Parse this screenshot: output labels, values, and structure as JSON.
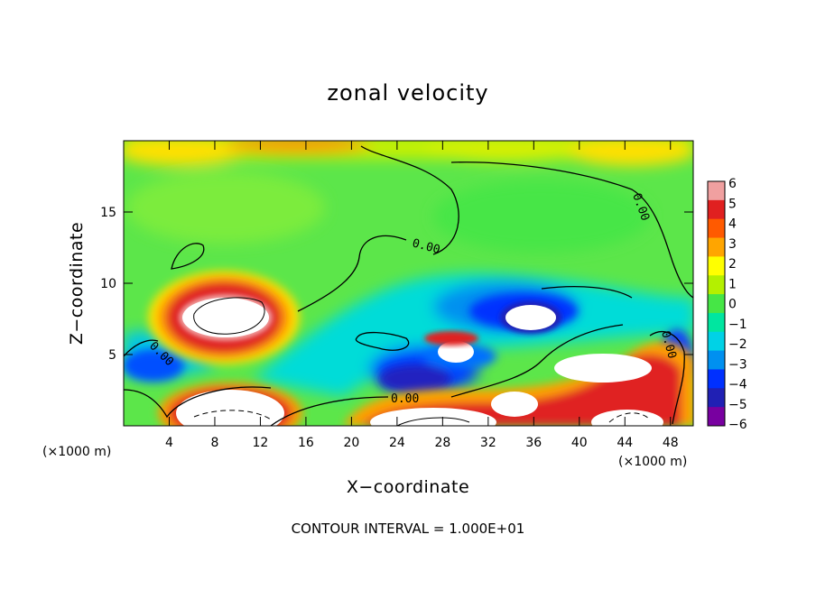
{
  "chart_data": {
    "type": "heatmap",
    "title": "zonal velocity",
    "xlabel": "X−coordinate",
    "ylabel": "Z−coordinate",
    "x_unit_left": "(×1000 m)",
    "x_unit_right": "(×1000 m)",
    "xlim": [
      0,
      50
    ],
    "ylim": [
      0,
      20
    ],
    "x_ticks": [
      4,
      8,
      12,
      16,
      20,
      24,
      28,
      32,
      36,
      40,
      44,
      48
    ],
    "y_ticks": [
      5,
      10,
      15
    ],
    "colorbar": {
      "min": -6,
      "max": 6,
      "tick_values": [
        6,
        5,
        4,
        3,
        2,
        1,
        0,
        -1,
        -2,
        -3,
        -4,
        -5,
        -6
      ],
      "tick_labels": [
        "6",
        "5",
        "4",
        "3",
        "2",
        "1",
        "0",
        "−1",
        "−2",
        "−3",
        "−4",
        "−5",
        "−6"
      ],
      "colors": [
        "#f0a0a0",
        "#e02020",
        "#ff5a00",
        "#ffa500",
        "#ffff00",
        "#b4f000",
        "#46e646",
        "#00e6a0",
        "#00d2e6",
        "#0090f0",
        "#0030ff",
        "#2020b4",
        "#7800a0"
      ]
    },
    "contour_labels": [
      "0.00",
      "0.00",
      "0.00",
      "0.00",
      "0.00"
    ],
    "footnote": "CONTOUR INTERVAL = 1.000E+01"
  }
}
